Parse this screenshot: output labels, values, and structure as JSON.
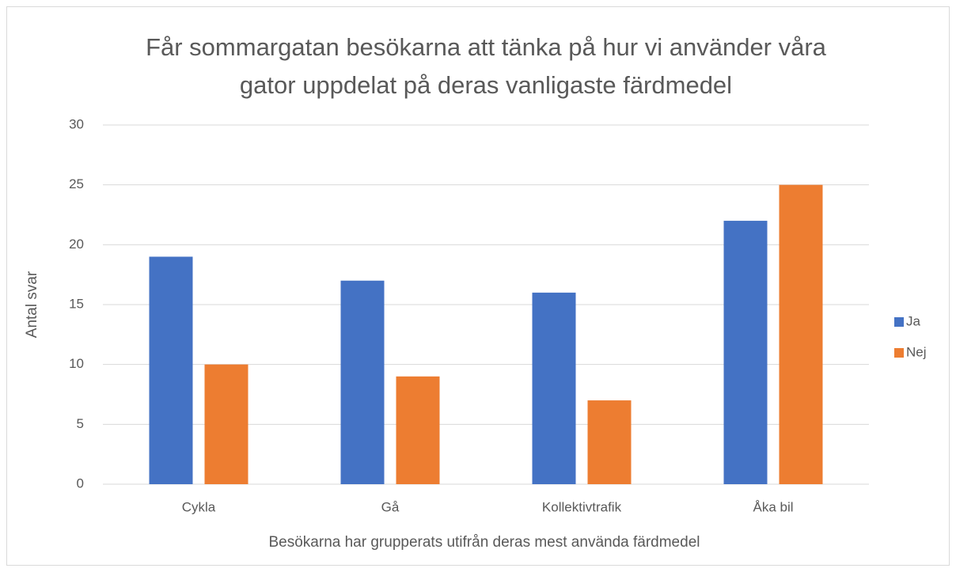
{
  "chart_data": {
    "type": "bar",
    "title": [
      "Får sommargatan besökarna att tänka på hur vi använder våra",
      "gator uppdelat på deras vanligaste färdmedel"
    ],
    "x_label": "Besökarna har grupperats utifrån deras mest använda färdmedel",
    "y_label": "Antal svar",
    "categories": [
      "Cykla",
      "Gå",
      "Kollektivtrafik",
      "Åka bil"
    ],
    "series": [
      {
        "name": "Ja",
        "color": "#4472c4",
        "values": [
          19,
          17,
          16,
          22
        ]
      },
      {
        "name": "Nej",
        "color": "#ed7d31",
        "values": [
          10,
          9,
          7,
          25
        ]
      }
    ],
    "ylim": [
      0,
      30
    ],
    "yticks": [
      0,
      5,
      10,
      15,
      20,
      25,
      30
    ],
    "grid": true,
    "legend": "right"
  }
}
